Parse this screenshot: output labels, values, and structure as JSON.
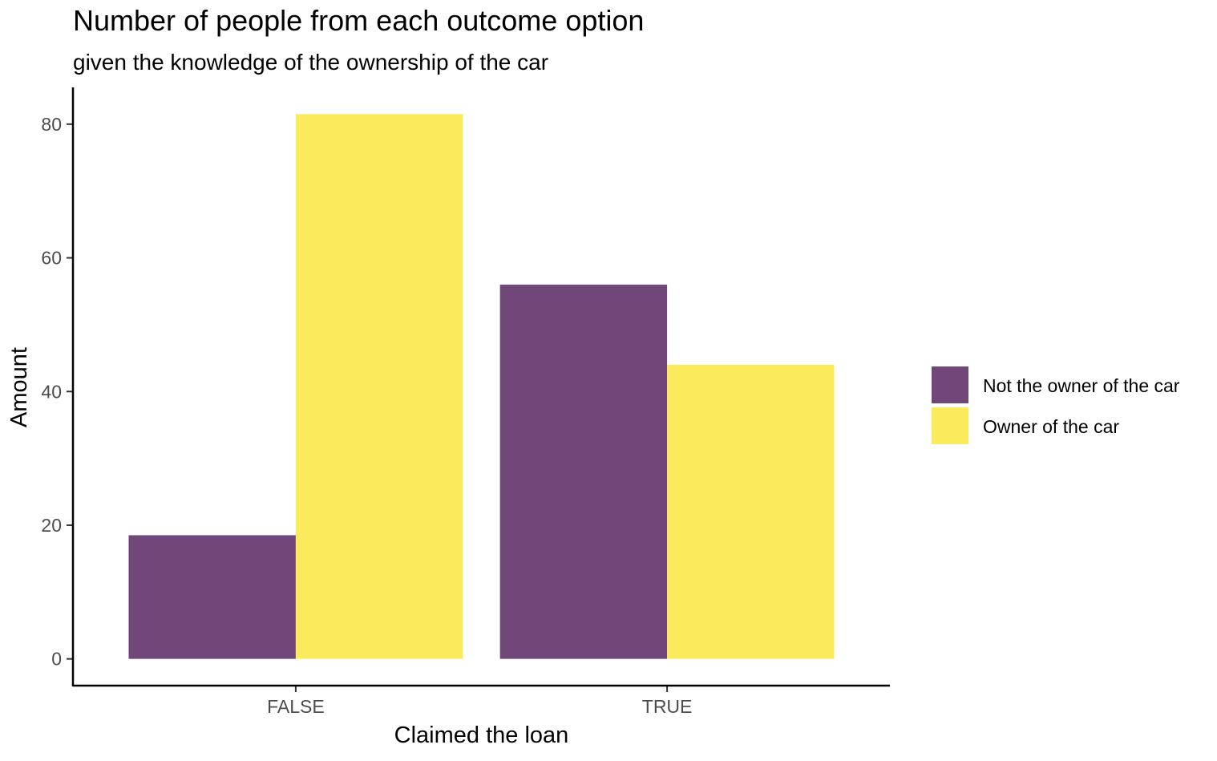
{
  "chart_data": {
    "type": "bar",
    "title": "Number of people from each outcome option",
    "subtitle": "given the knowledge of the ownership of the car",
    "xlabel": "Claimed the loan",
    "ylabel": "Amount",
    "categories": [
      "FALSE",
      "TRUE"
    ],
    "series": [
      {
        "name": "Not the owner of the car",
        "values": [
          18.5,
          56
        ],
        "color": "#71477A"
      },
      {
        "name": "Owner of the car",
        "values": [
          81.5,
          44
        ],
        "color": "#FCEA5D"
      }
    ],
    "yticks": [
      0,
      20,
      40,
      60,
      80
    ],
    "ylim": [
      -4,
      85.5
    ],
    "grid": false,
    "legend_position": "right"
  }
}
